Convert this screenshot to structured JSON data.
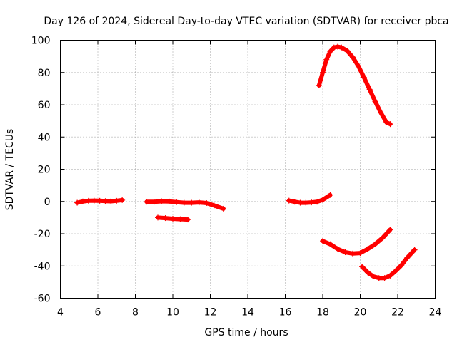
{
  "chart_data": {
    "type": "scatter",
    "title": "Day 126 of 2024, Sidereal Day-to-day VTEC variation (SDTVAR) for receiver pbca",
    "xlabel": "GPS time / hours",
    "ylabel": "SDTVAR / TECUs",
    "xlim": [
      4,
      24
    ],
    "ylim": [
      -60,
      100
    ],
    "xticks": [
      4,
      6,
      8,
      10,
      12,
      14,
      16,
      18,
      20,
      22,
      24
    ],
    "yticks": [
      -60,
      -40,
      -20,
      0,
      20,
      40,
      60,
      80,
      100
    ],
    "grid": true,
    "color": "#ff0000",
    "series": [
      {
        "name": "arc-1",
        "x": [
          4.9,
          5.2,
          5.5,
          5.8,
          6.1,
          6.4,
          6.7,
          7.0,
          7.3
        ],
        "y": [
          -0.8,
          0.0,
          0.4,
          0.5,
          0.4,
          0.2,
          0.1,
          0.4,
          0.8
        ]
      },
      {
        "name": "arc-2",
        "x": [
          8.6,
          9.0,
          9.4,
          9.8,
          10.2,
          10.6,
          11.0,
          11.4,
          11.8,
          12.2,
          12.7
        ],
        "y": [
          -0.2,
          -0.2,
          0.1,
          0.0,
          -0.4,
          -0.8,
          -0.8,
          -0.6,
          -1.0,
          -2.5,
          -4.5
        ]
      },
      {
        "name": "arc-3",
        "x": [
          9.2,
          9.6,
          10.0,
          10.4,
          10.8
        ],
        "y": [
          -10.0,
          -10.3,
          -10.7,
          -11.0,
          -11.2
        ]
      },
      {
        "name": "arc-4",
        "x": [
          16.2,
          16.5,
          16.8,
          17.1,
          17.4,
          17.7,
          18.0,
          18.4
        ],
        "y": [
          0.5,
          -0.2,
          -0.8,
          -0.8,
          -0.6,
          -0.2,
          1.0,
          4.0
        ]
      },
      {
        "name": "arc-5",
        "x": [
          17.8,
          18.0,
          18.2,
          18.4,
          18.6,
          18.8,
          19.0,
          19.3,
          19.6,
          19.9,
          20.2,
          20.5,
          20.8,
          21.1,
          21.4,
          21.6
        ],
        "y": [
          72,
          80,
          88,
          93,
          95.5,
          96,
          95.5,
          93.5,
          89.5,
          84,
          77,
          69.5,
          62,
          55,
          49,
          48
        ]
      },
      {
        "name": "arc-6",
        "x": [
          18.0,
          18.4,
          18.8,
          19.2,
          19.6,
          20.0,
          20.4,
          20.8,
          21.2,
          21.6
        ],
        "y": [
          -24.5,
          -26.5,
          -29.5,
          -31.5,
          -32.3,
          -32.0,
          -29.5,
          -26.5,
          -22.5,
          -17.5
        ]
      },
      {
        "name": "arc-7",
        "x": [
          20.1,
          20.4,
          20.7,
          21.0,
          21.3,
          21.6,
          21.9,
          22.2,
          22.5,
          22.9
        ],
        "y": [
          -40.5,
          -44.0,
          -46.5,
          -47.5,
          -47.5,
          -46.0,
          -43.0,
          -39.5,
          -35.0,
          -30.0
        ]
      }
    ]
  }
}
